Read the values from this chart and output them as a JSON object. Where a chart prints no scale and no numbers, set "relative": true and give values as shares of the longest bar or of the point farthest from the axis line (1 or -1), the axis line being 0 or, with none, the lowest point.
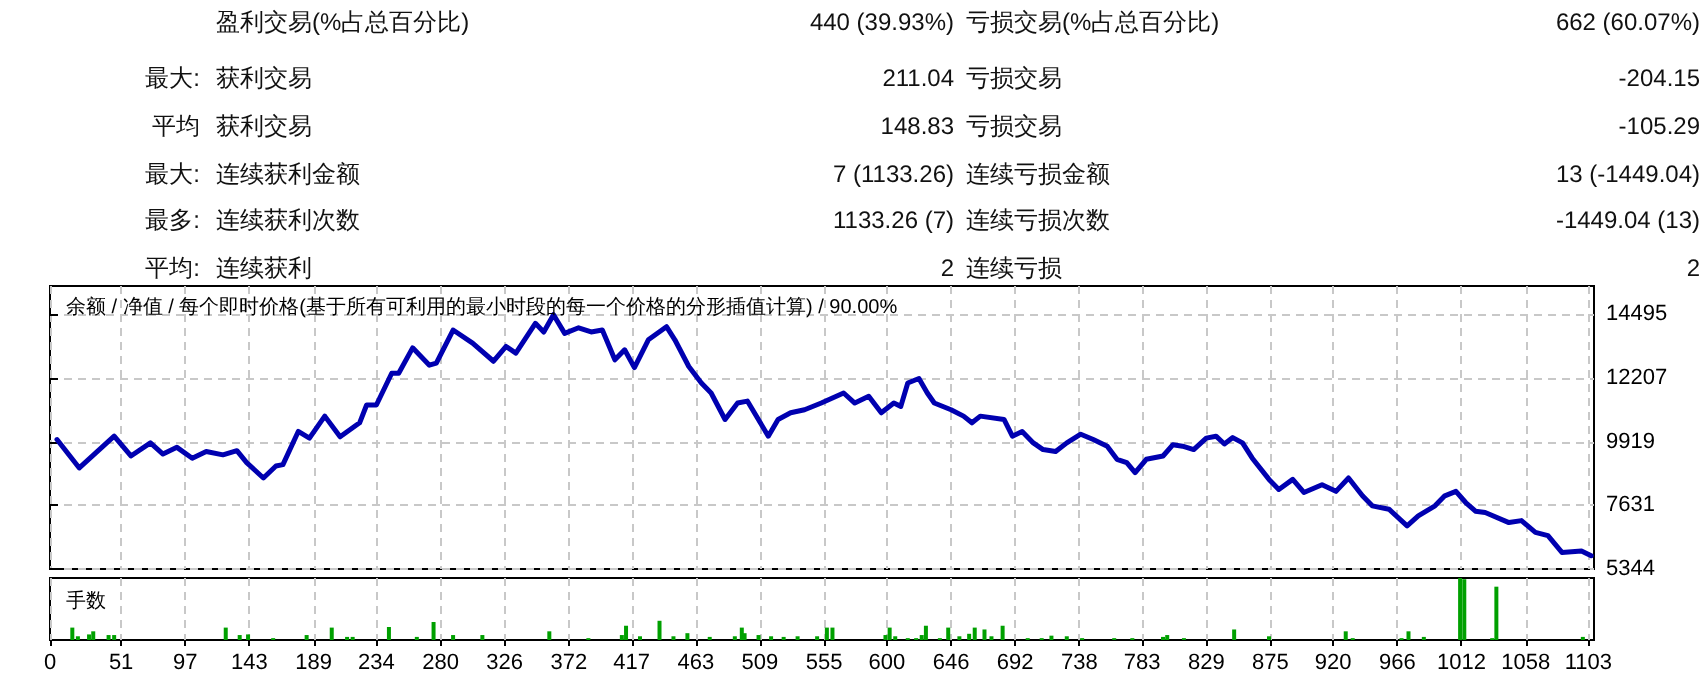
{
  "chart_data": [
    {
      "type": "other",
      "annotations": [
        "盈利交易(%占总百分比)",
        "440 (39.93%)",
        "亏损交易(%占总百分比)",
        "662 (60.07%)",
        "最大:",
        "获利交易",
        "211.04",
        "亏损交易",
        "-204.15",
        "平均",
        "获利交易",
        "148.83",
        "亏损交易",
        "-105.29",
        "最大:",
        "连续获利金额",
        "7 (1133.26)",
        "连续亏损金额",
        "13 (-1449.04)",
        "最多:",
        "连续获利次数",
        "1133.26 (7)",
        "连续亏损次数",
        "-1449.04 (13)",
        "平均:",
        "连续获利",
        "2",
        "连续亏损",
        "2"
      ]
    },
    {
      "type": "line",
      "title": "余额 / 净值 / 每个即时价格(基于所有可利用的最小时段的每一个价格的分形插值计算) / 90.00%",
      "xlim": [
        0,
        1107
      ],
      "xticks": [
        0,
        51,
        97,
        143,
        189,
        234,
        280,
        326,
        372,
        417,
        463,
        509,
        555,
        600,
        646,
        692,
        738,
        783,
        829,
        875,
        920,
        966,
        1012,
        1058,
        1103
      ],
      "ylim": [
        5344,
        15500
      ],
      "yticks": [
        5344,
        7631,
        9919,
        12207,
        14495
      ],
      "tick_labels": "y",
      "grid": true,
      "series": [
        {
          "color": "#0000b0",
          "x": [
            5,
            21,
            46,
            58,
            72,
            81,
            91,
            102,
            112,
            124,
            134,
            141,
            153,
            162,
            167,
            178,
            186,
            197,
            208,
            222,
            227,
            234,
            245,
            250,
            260,
            272,
            277,
            289,
            303,
            318,
            327,
            334,
            348,
            354,
            361,
            369,
            379,
            388,
            396,
            405,
            412,
            419,
            429,
            442,
            448,
            458,
            467,
            474,
            484,
            493,
            500,
            515,
            522,
            531,
            541,
            553,
            569,
            577,
            587,
            596,
            605,
            610,
            615,
            623,
            629,
            634,
            646,
            655,
            661,
            667,
            684,
            690,
            697,
            705,
            712,
            721,
            729,
            739,
            748,
            758,
            765,
            772,
            778,
            786,
            798,
            805,
            812,
            820,
            829,
            836,
            842,
            848,
            855,
            862,
            874,
            881,
            891,
            899,
            912,
            922,
            931,
            941,
            948,
            960,
            973,
            981,
            993,
            1000,
            1008,
            1015,
            1022,
            1029,
            1046,
            1055,
            1065,
            1074,
            1084,
            1098,
            1105
          ],
          "values": [
            9990,
            8970,
            10110,
            9400,
            9870,
            9470,
            9710,
            9320,
            9560,
            9440,
            9590,
            9160,
            8610,
            9040,
            9090,
            10280,
            10040,
            10830,
            10090,
            10590,
            11230,
            11230,
            12370,
            12370,
            13280,
            12660,
            12730,
            13920,
            13450,
            12800,
            13330,
            13090,
            14160,
            13850,
            14470,
            13800,
            14000,
            13850,
            13920,
            12850,
            13210,
            12570,
            13570,
            14040,
            13570,
            12610,
            12020,
            11660,
            10710,
            11300,
            11370,
            10110,
            10710,
            10950,
            11060,
            11300,
            11660,
            11300,
            11540,
            10950,
            11300,
            11180,
            12020,
            12180,
            11660,
            11300,
            11060,
            10830,
            10590,
            10830,
            10710,
            10110,
            10280,
            9870,
            9630,
            9560,
            9870,
            10180,
            9990,
            9750,
            9280,
            9160,
            8800,
            9280,
            9400,
            9800,
            9750,
            9630,
            10040,
            10110,
            9830,
            10060,
            9870,
            9320,
            8560,
            8200,
            8560,
            8090,
            8370,
            8130,
            8610,
            7970,
            7610,
            7490,
            6890,
            7250,
            7610,
            7970,
            8130,
            7730,
            7420,
            7370,
            7010,
            7080,
            6660,
            6540,
            5940,
            5990,
            5820
          ]
        }
      ]
    },
    {
      "type": "bar",
      "ylabel": "手数",
      "relative": true,
      "xlim": [
        0,
        1107
      ],
      "xticks": [
        0,
        51,
        97,
        143,
        189,
        234,
        280,
        326,
        372,
        417,
        463,
        509,
        555,
        600,
        646,
        692,
        738,
        783,
        829,
        875,
        920,
        966,
        1012,
        1058,
        1103
      ],
      "tick_labels": "x",
      "grid": "x",
      "series": [
        {
          "color": "#00a000",
          "x": [
            16,
            20,
            28,
            31,
            42,
            46,
            126,
            136,
            142,
            160,
            184,
            202,
            213,
            217,
            243,
            263,
            275,
            289,
            310,
            358,
            386,
            410,
            413,
            423,
            437,
            447,
            457,
            473,
            491,
            496,
            498,
            508,
            517,
            526,
            536,
            550,
            557,
            561,
            599,
            602,
            606,
            615,
            621,
            625,
            628,
            638,
            644,
            652,
            659,
            663,
            670,
            675,
            683,
            701,
            711,
            718,
            729,
            740,
            763,
            776,
            798,
            801,
            813,
            849,
            874,
            929,
            934,
            969,
            974,
            985,
            1011,
            1014,
            1034,
            1037,
            1099
          ],
          "values": [
            0.2,
            0.06,
            0.09,
            0.14,
            0.08,
            0.08,
            0.2,
            0.08,
            0.09,
            0.03,
            0.08,
            0.2,
            0.05,
            0.05,
            0.21,
            0.05,
            0.29,
            0.08,
            0.08,
            0.14,
            0.03,
            0.08,
            0.23,
            0.06,
            0.31,
            0.06,
            0.11,
            0.05,
            0.06,
            0.2,
            0.11,
            0.08,
            0.06,
            0.05,
            0.06,
            0.06,
            0.2,
            0.2,
            0.08,
            0.2,
            0.06,
            0.03,
            0.03,
            0.08,
            0.23,
            0.03,
            0.2,
            0.06,
            0.1,
            0.2,
            0.17,
            0.06,
            0.23,
            0.03,
            0.03,
            0.07,
            0.06,
            0.03,
            0.03,
            0.03,
            0.05,
            0.08,
            0.03,
            0.17,
            0.06,
            0.14,
            0.03,
            0.03,
            0.14,
            0.05,
            1,
            0.98,
            0.03,
            0.86,
            0.05
          ]
        }
      ]
    }
  ]
}
